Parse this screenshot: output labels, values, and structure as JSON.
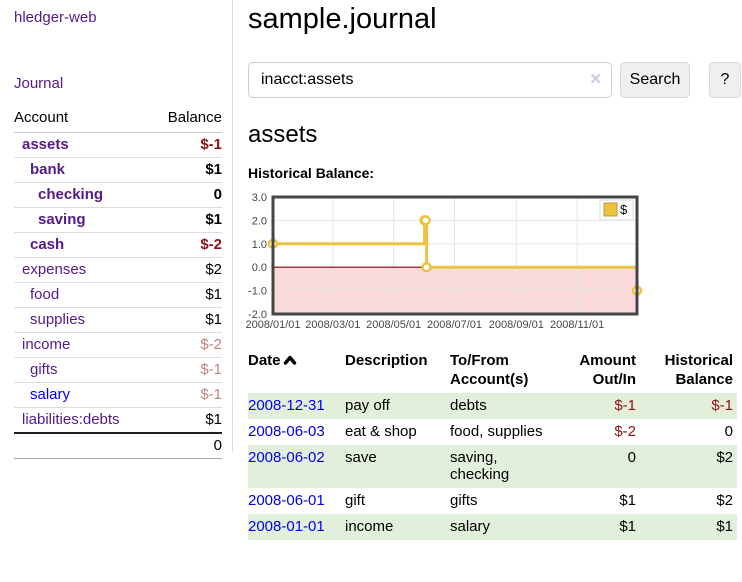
{
  "sidebar": {
    "brand": "hledger-web",
    "nav_journal": "Journal",
    "accounts_table": {
      "col_account": "Account",
      "col_balance": "Balance",
      "rows": [
        {
          "account": "assets",
          "depth": 1,
          "bold": true,
          "link_color": "purple",
          "balance": "$-1",
          "balance_color": "neg"
        },
        {
          "account": "bank",
          "depth": 2,
          "bold": true,
          "link_color": "purple",
          "balance": "$1",
          "balance_color": "pos"
        },
        {
          "account": "checking",
          "depth": 3,
          "bold": true,
          "link_color": "purple",
          "balance": "0",
          "balance_color": "pos"
        },
        {
          "account": "saving",
          "depth": 3,
          "bold": true,
          "link_color": "purple",
          "balance": "$1",
          "balance_color": "pos"
        },
        {
          "account": "cash",
          "depth": 2,
          "bold": true,
          "link_color": "purple",
          "balance": "$-2",
          "balance_color": "neg"
        },
        {
          "account": "expenses",
          "depth": 1,
          "bold": false,
          "link_color": "purple",
          "balance": "$2",
          "balance_color": "pos"
        },
        {
          "account": "food",
          "depth": 2,
          "bold": false,
          "link_color": "purple",
          "balance": "$1",
          "balance_color": "pos"
        },
        {
          "account": "supplies",
          "depth": 2,
          "bold": false,
          "link_color": "purple",
          "balance": "$1",
          "balance_color": "pos"
        },
        {
          "account": "income",
          "depth": 1,
          "bold": false,
          "link_color": "purple",
          "balance": "$-2",
          "balance_color": "neg-muted"
        },
        {
          "account": "gifts",
          "depth": 2,
          "bold": false,
          "link_color": "purple",
          "balance": "$-1",
          "balance_color": "neg-muted"
        },
        {
          "account": "salary",
          "depth": 2,
          "bold": false,
          "link_color": "blue",
          "balance": "$-1",
          "balance_color": "neg-muted"
        },
        {
          "account": "liabilities:debts",
          "depth": 1,
          "bold": false,
          "link_color": "purple",
          "balance": "$1",
          "balance_color": "pos"
        }
      ],
      "total": "0"
    }
  },
  "main": {
    "title": "sample.journal",
    "search": {
      "query": "inacct:assets",
      "clear_icon": "✕",
      "button": "Search",
      "help": "?"
    },
    "account_heading": "assets",
    "section_label": "Historical Balance:"
  },
  "chart_data": {
    "type": "line",
    "title": "Historical Balance:",
    "step": "after",
    "x_domain": [
      "2008-01-01",
      "2008-12-31"
    ],
    "ylim": [
      -2,
      3
    ],
    "y_ticks": [
      3,
      2,
      1,
      0,
      -1,
      -2
    ],
    "x_ticks": [
      "2008/01/01",
      "2008/03/01",
      "2008/05/01",
      "2008/07/01",
      "2008/09/01",
      "2008/11/01"
    ],
    "series": [
      {
        "name": "$",
        "color": "#EDC240",
        "points": [
          [
            "2008-01-01",
            1
          ],
          [
            "2008-06-01",
            2
          ],
          [
            "2008-06-02",
            2
          ],
          [
            "2008-06-03",
            0
          ],
          [
            "2008-12-31",
            -1
          ]
        ]
      }
    ],
    "grid": true,
    "grid_color": "#e7e7e7",
    "border_color": "#454545",
    "negative_region_fill": "#fadada",
    "zero_line_color": "#8b0000",
    "legend": {
      "label": "$",
      "position": "top-right"
    }
  },
  "register_table": {
    "headers": {
      "date": "Date",
      "description": "Description",
      "accounts": "To/From Account(s)",
      "amount": "Amount Out/In",
      "balance": "Historical Balance"
    },
    "rows": [
      {
        "date": "2008-12-31",
        "description": "pay off",
        "accounts": "debts",
        "amount": "$-1",
        "amount_color": "neg",
        "balance": "$-1",
        "balance_color": "neg",
        "shaded": true
      },
      {
        "date": "2008-06-03",
        "description": "eat & shop",
        "accounts": "food, supplies",
        "amount": "$-2",
        "amount_color": "neg",
        "balance": "0",
        "balance_color": "pos",
        "shaded": false
      },
      {
        "date": "2008-06-02",
        "description": "save",
        "accounts": "saving, checking",
        "amount": "0",
        "amount_color": "pos",
        "balance": "$2",
        "balance_color": "pos",
        "shaded": true
      },
      {
        "date": "2008-06-01",
        "description": "gift",
        "accounts": "gifts",
        "amount": "$1",
        "amount_color": "pos",
        "balance": "$2",
        "balance_color": "pos",
        "shaded": false
      },
      {
        "date": "2008-01-01",
        "description": "income",
        "accounts": "salary",
        "amount": "$1",
        "amount_color": "pos",
        "balance": "$1",
        "balance_color": "pos",
        "shaded": true
      }
    ]
  }
}
